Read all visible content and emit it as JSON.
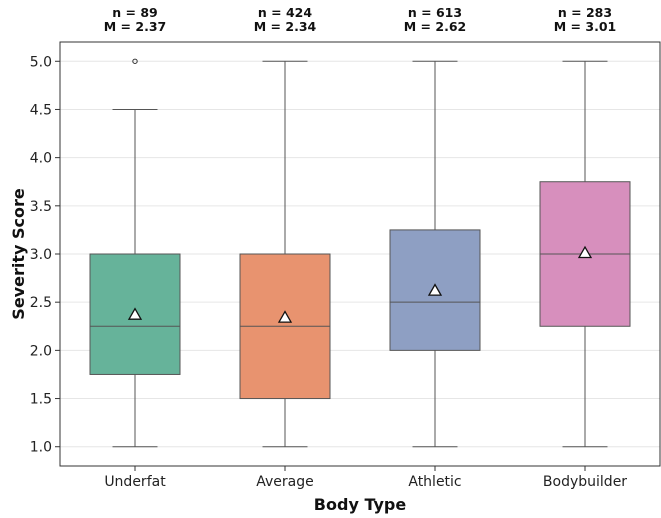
{
  "chart_data": {
    "type": "box",
    "categories": [
      "Underfat",
      "Average",
      "Athletic",
      "Bodybuilder"
    ],
    "xlabel": "Body Type",
    "ylabel": "Severity Score",
    "ylim": [
      0.8,
      5.2
    ],
    "yticks": [
      1.0,
      1.5,
      2.0,
      2.5,
      3.0,
      3.5,
      4.0,
      4.5,
      5.0
    ],
    "grid": "y",
    "boxes": [
      {
        "category": "Underfat",
        "whisker_low": 1.0,
        "q1": 1.75,
        "median": 2.25,
        "q3": 3.0,
        "whisker_high": 4.5,
        "mean": 2.37,
        "outliers": [
          5.0
        ],
        "color": "#66b39a",
        "n_label": "n = 89",
        "m_label": "M = 2.37"
      },
      {
        "category": "Average",
        "whisker_low": 1.0,
        "q1": 1.5,
        "median": 2.25,
        "q3": 3.0,
        "whisker_high": 5.0,
        "mean": 2.34,
        "outliers": [],
        "color": "#e8936f",
        "n_label": "n = 424",
        "m_label": "M = 2.34"
      },
      {
        "category": "Athletic",
        "whisker_low": 1.0,
        "q1": 2.0,
        "median": 2.5,
        "q3": 3.25,
        "whisker_high": 5.0,
        "mean": 2.62,
        "outliers": [],
        "color": "#8e9fc3",
        "n_label": "n = 613",
        "m_label": "M = 2.62"
      },
      {
        "category": "Bodybuilder",
        "whisker_low": 1.0,
        "q1": 2.25,
        "median": 3.0,
        "q3": 3.75,
        "whisker_high": 5.0,
        "mean": 3.01,
        "outliers": [],
        "color": "#d78fbd",
        "n_label": "n = 283",
        "m_label": "M = 3.01"
      }
    ]
  }
}
